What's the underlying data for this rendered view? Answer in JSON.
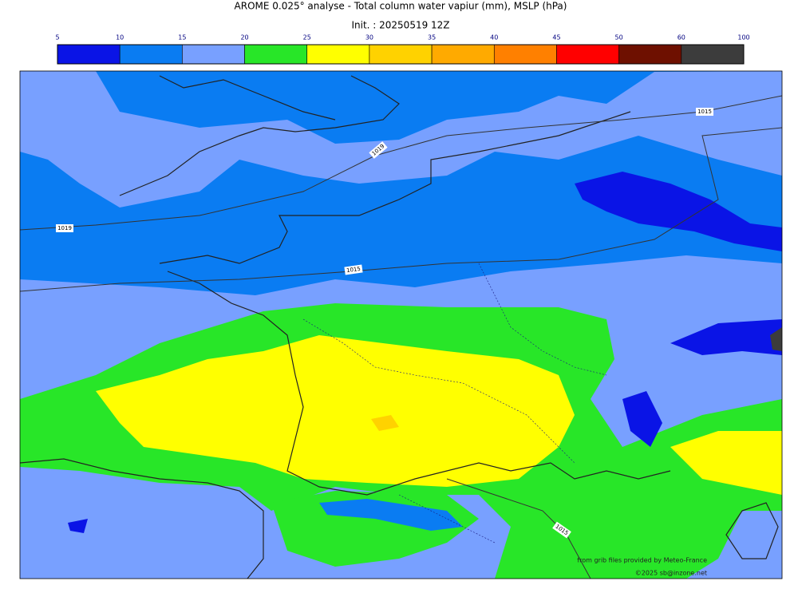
{
  "title": "AROME 0.025° analyse - Total column water vapiur (mm), MSLP (hPa)",
  "subtitle": "Init. : 20250519 12Z",
  "colorbar": {
    "ticks": [
      5,
      10,
      15,
      20,
      25,
      30,
      35,
      40,
      45,
      50,
      60,
      100
    ],
    "colors": [
      "#0a14e6",
      "#0a7cf2",
      "#78a0ff",
      "#28e628",
      "#ffff00",
      "#ffd200",
      "#ffaa00",
      "#ff8000",
      "#ff0000",
      "#6e1000",
      "#3c3c3c"
    ]
  },
  "isobars": [
    "1019",
    "1019",
    "1015",
    "1015",
    "1015"
  ],
  "credits": [
    "from grib files provided by Meteo-France",
    "©2025 sb@inzone.net"
  ]
}
